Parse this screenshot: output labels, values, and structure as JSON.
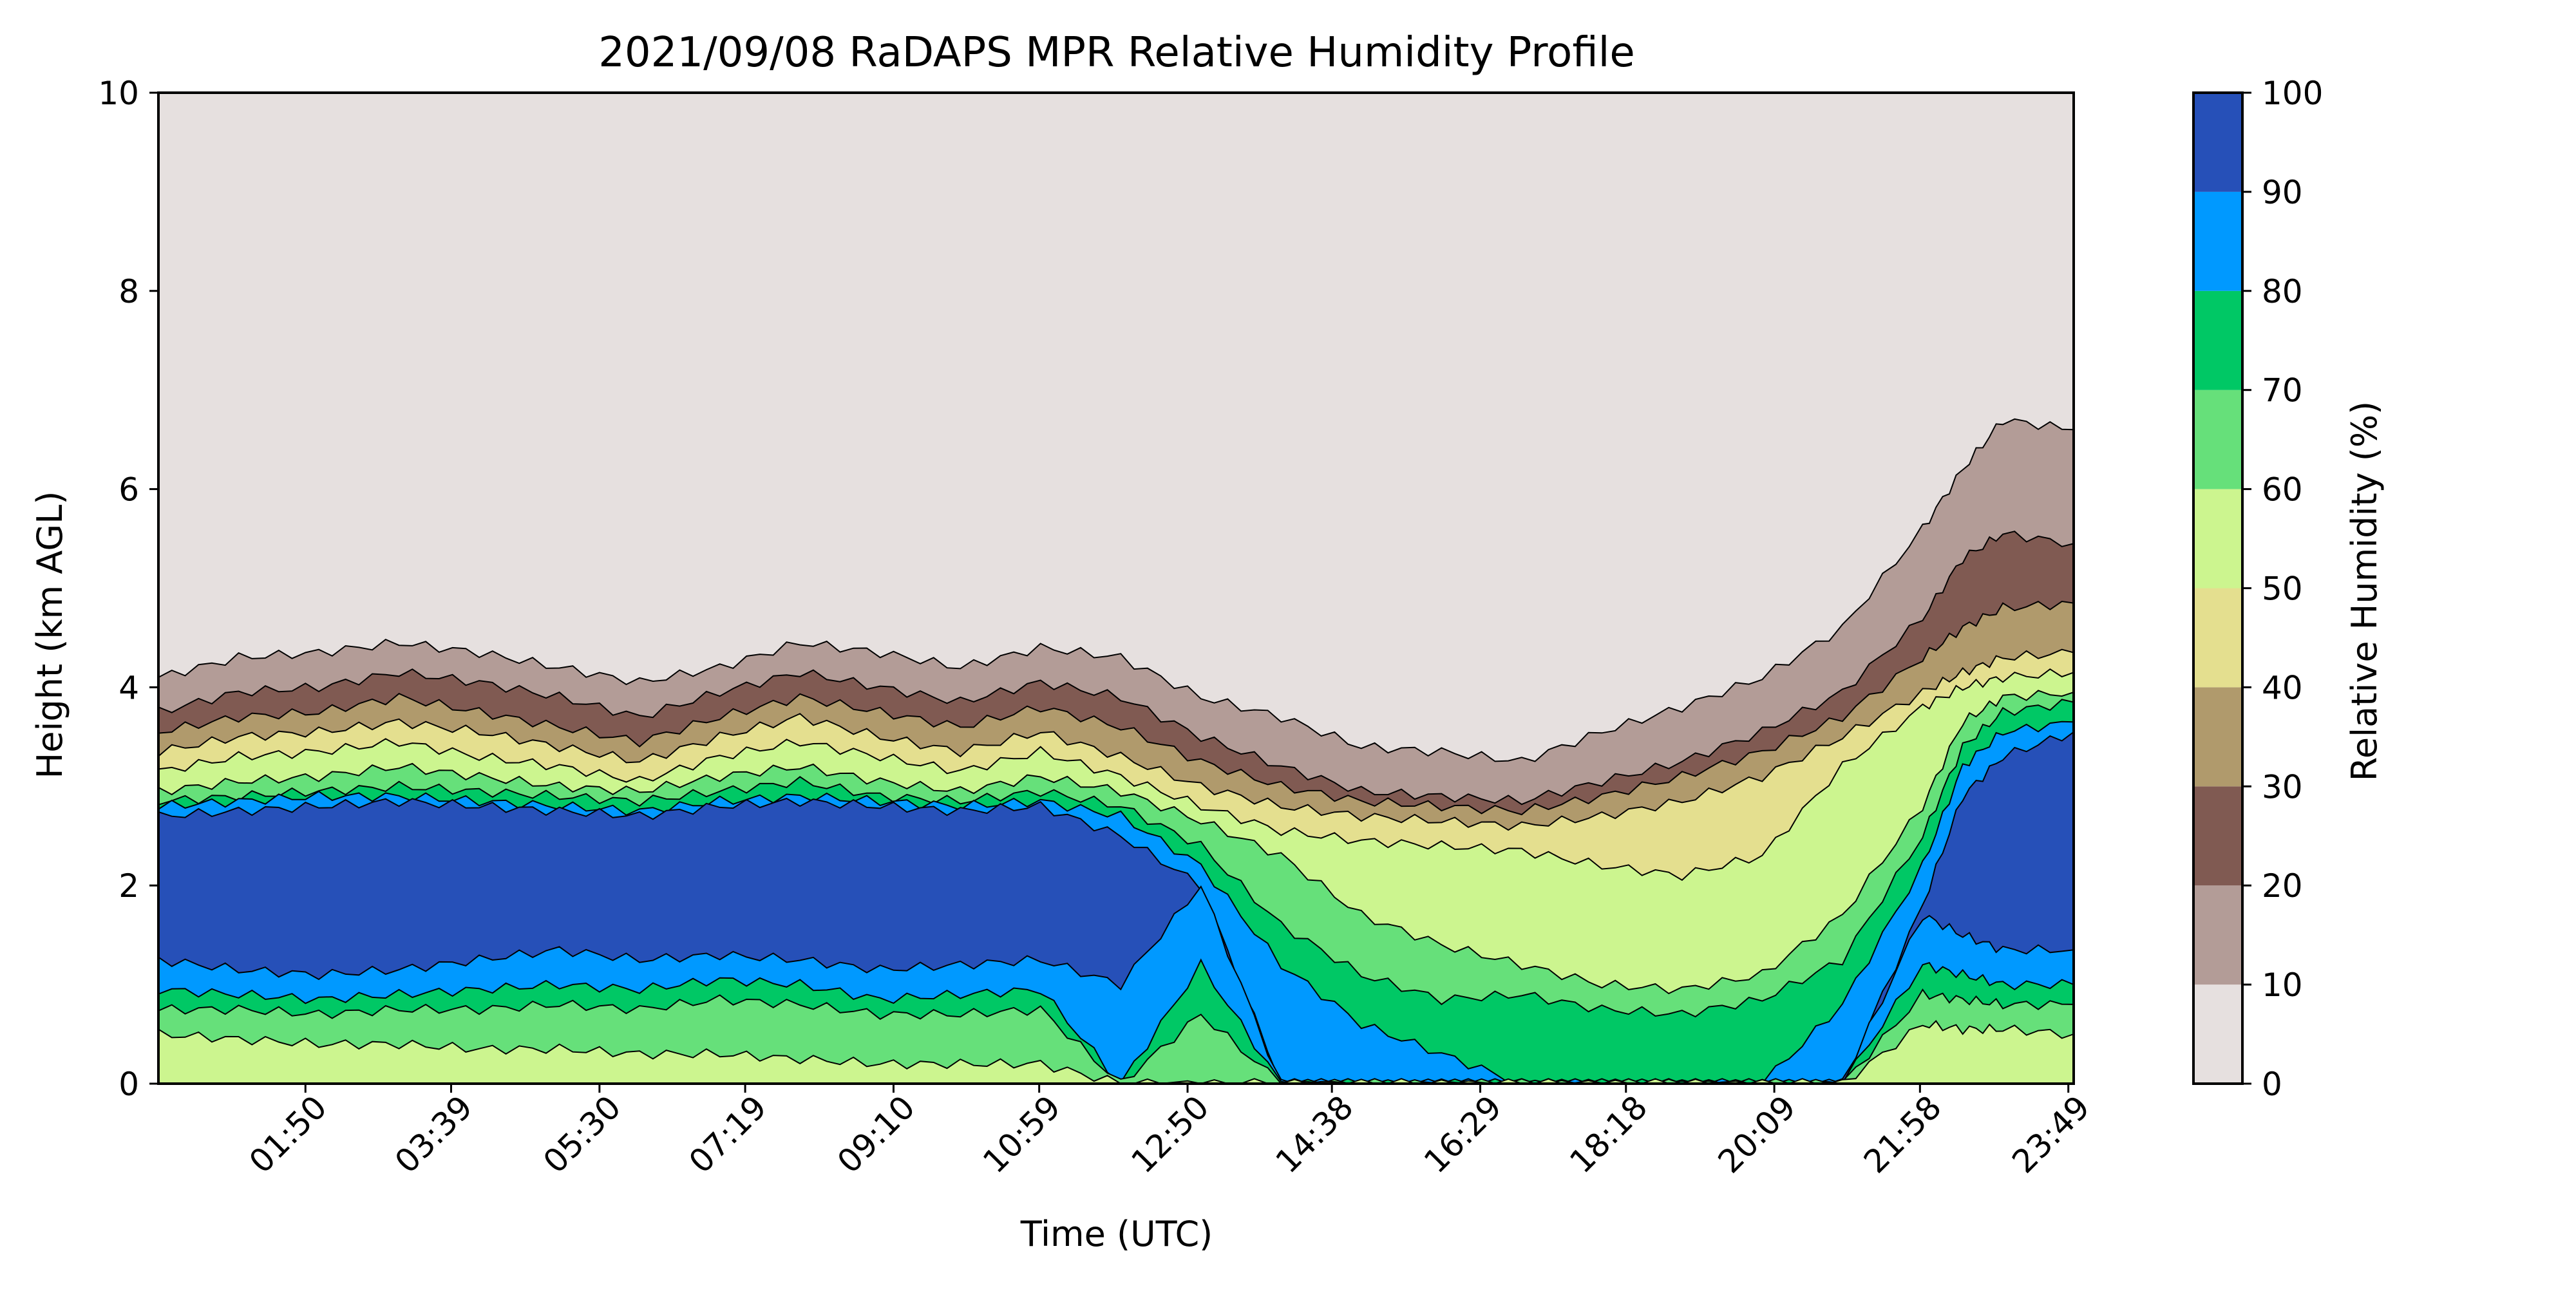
{
  "chart_data": {
    "type": "heatmap",
    "subtype": "filled-contour",
    "title": "2021/09/08 RaDAPS MPR Relative Humidity Profile",
    "xlabel": "Time (UTC)",
    "ylabel": "Height (km AGL)",
    "xlim_hours": [
      0,
      23.8833
    ],
    "ylim": [
      0,
      10
    ],
    "x_ticks": [
      {
        "label": "01:50",
        "hour": 1.8333
      },
      {
        "label": "03:39",
        "hour": 3.65
      },
      {
        "label": "05:30",
        "hour": 5.5
      },
      {
        "label": "07:19",
        "hour": 7.3167
      },
      {
        "label": "09:10",
        "hour": 9.1667
      },
      {
        "label": "10:59",
        "hour": 10.9833
      },
      {
        "label": "12:50",
        "hour": 12.8333
      },
      {
        "label": "14:38",
        "hour": 14.6333
      },
      {
        "label": "16:29",
        "hour": 16.4833
      },
      {
        "label": "18:18",
        "hour": 18.3
      },
      {
        "label": "20:09",
        "hour": 20.15
      },
      {
        "label": "21:58",
        "hour": 21.9667
      },
      {
        "label": "23:49",
        "hour": 23.8167
      }
    ],
    "y_ticks": [
      "0",
      "2",
      "4",
      "6",
      "8",
      "10"
    ],
    "y_tick_values": [
      0,
      2,
      4,
      6,
      8,
      10
    ],
    "grid": false,
    "colorbar": {
      "label": "Relative Humidity (%)",
      "ticks": [
        "0",
        "10",
        "20",
        "30",
        "40",
        "50",
        "60",
        "70",
        "80",
        "90",
        "100"
      ],
      "levels": [
        0,
        10,
        20,
        30,
        40,
        50,
        60,
        70,
        80,
        90,
        100
      ],
      "colors": [
        "#e6e0df",
        "#b39c97",
        "#805a52",
        "#b09a6c",
        "#e4df8f",
        "#ccf58f",
        "#66e07a",
        "#00c865",
        "#0099ff",
        "#2650b8"
      ],
      "placement": "right"
    },
    "contour_boundaries_km": {
      "hours": [
        0.0,
        1.0,
        2.0,
        3.0,
        4.0,
        5.0,
        6.0,
        7.0,
        8.0,
        9.0,
        10.0,
        11.0,
        12.0,
        13.0,
        14.0,
        15.0,
        16.0,
        17.0,
        18.0,
        19.0,
        20.0,
        21.0,
        22.0,
        22.5,
        23.0,
        23.8833
      ],
      "rh10": [
        4.1,
        4.3,
        4.35,
        4.45,
        4.35,
        4.2,
        4.05,
        4.2,
        4.45,
        4.35,
        4.2,
        4.4,
        4.3,
        3.9,
        3.7,
        3.4,
        3.35,
        3.25,
        3.55,
        3.8,
        4.1,
        4.6,
        5.6,
        6.2,
        6.7,
        6.6
      ],
      "rh20": [
        3.75,
        3.95,
        4.0,
        4.15,
        4.05,
        3.9,
        3.7,
        3.95,
        4.15,
        4.0,
        3.85,
        4.05,
        3.9,
        3.5,
        3.2,
        2.95,
        2.9,
        2.85,
        3.05,
        3.25,
        3.55,
        3.95,
        4.7,
        5.3,
        5.55,
        5.45
      ],
      "rh30": [
        3.55,
        3.7,
        3.75,
        3.9,
        3.75,
        3.6,
        3.45,
        3.7,
        3.9,
        3.75,
        3.6,
        3.8,
        3.6,
        3.25,
        3.0,
        2.85,
        2.8,
        2.75,
        2.9,
        3.1,
        3.35,
        3.7,
        4.3,
        4.6,
        4.8,
        4.85
      ],
      "rh40": [
        3.35,
        3.5,
        3.55,
        3.65,
        3.55,
        3.4,
        3.25,
        3.5,
        3.7,
        3.5,
        3.35,
        3.55,
        3.3,
        3.0,
        2.8,
        2.7,
        2.65,
        2.6,
        2.7,
        2.85,
        3.1,
        3.5,
        3.95,
        4.15,
        4.3,
        4.35
      ],
      "rh50": [
        3.15,
        3.3,
        3.35,
        3.45,
        3.3,
        3.2,
        3.05,
        3.3,
        3.45,
        3.3,
        3.15,
        3.35,
        3.1,
        2.8,
        2.55,
        2.45,
        2.4,
        2.35,
        2.2,
        2.1,
        2.3,
        3.2,
        3.8,
        4.0,
        4.1,
        4.15
      ],
      "rh60": [
        2.95,
        3.05,
        3.1,
        3.2,
        3.1,
        3.0,
        2.95,
        3.1,
        3.2,
        3.05,
        2.95,
        3.1,
        2.95,
        2.65,
        2.3,
        1.7,
        1.4,
        1.2,
        1.0,
        0.95,
        1.1,
        1.7,
        2.8,
        3.65,
        3.9,
        3.95
      ],
      "rh70": [
        2.85,
        2.9,
        2.95,
        3.0,
        2.95,
        2.9,
        2.85,
        2.95,
        3.05,
        2.9,
        2.85,
        2.95,
        2.8,
        2.4,
        1.6,
        1.1,
        0.85,
        0.9,
        0.75,
        0.7,
        0.85,
        1.25,
        2.5,
        3.4,
        3.75,
        3.85
      ],
      "rh80": [
        2.8,
        2.85,
        2.9,
        2.9,
        2.85,
        2.8,
        2.75,
        2.85,
        2.9,
        2.85,
        2.8,
        2.85,
        2.7,
        2.2,
        1.2,
        0.6,
        0.3,
        0.0,
        0.0,
        0.0,
        0.0,
        0.8,
        2.2,
        3.2,
        3.55,
        3.65
      ],
      "rh90": [
        2.7,
        2.75,
        2.8,
        2.85,
        2.8,
        2.75,
        2.7,
        2.8,
        2.85,
        2.8,
        2.75,
        2.8,
        2.5,
        2.0,
        0.0,
        0.0,
        0.0,
        0.0,
        0.0,
        0.0,
        0.0,
        0.0,
        1.8,
        2.9,
        3.3,
        3.55
      ],
      "rh90_lower": [
        1.25,
        1.15,
        1.1,
        1.15,
        1.25,
        1.35,
        1.25,
        1.3,
        1.25,
        1.15,
        1.2,
        1.25,
        1.0,
        2.0,
        0.0,
        0.0,
        0.0,
        0.0,
        0.0,
        0.0,
        0.0,
        0.0,
        1.7,
        1.5,
        1.35,
        1.35
      ],
      "rh80_lower": [
        0.95,
        0.9,
        0.85,
        0.9,
        0.95,
        1.0,
        0.95,
        1.05,
        1.0,
        0.85,
        0.9,
        0.95,
        0.0,
        1.2,
        0.0,
        0.0,
        0.0,
        0.0,
        0.0,
        0.0,
        0.0,
        0.0,
        1.2,
        1.1,
        1.0,
        1.0
      ],
      "rh70_lower": [
        0.75,
        0.75,
        0.7,
        0.75,
        0.75,
        0.8,
        0.75,
        0.85,
        0.8,
        0.7,
        0.7,
        0.75,
        0.0,
        0.7,
        0.0,
        0.0,
        0.0,
        0.0,
        0.0,
        0.0,
        0.0,
        0.0,
        0.9,
        0.85,
        0.8,
        0.8
      ],
      "rh60_lower": [
        0.5,
        0.45,
        0.4,
        0.4,
        0.35,
        0.35,
        0.3,
        0.3,
        0.25,
        0.2,
        0.2,
        0.2,
        0.0,
        0.0,
        0.0,
        0.0,
        0.0,
        0.0,
        0.0,
        0.0,
        0.0,
        0.0,
        0.6,
        0.55,
        0.55,
        0.5
      ]
    }
  }
}
